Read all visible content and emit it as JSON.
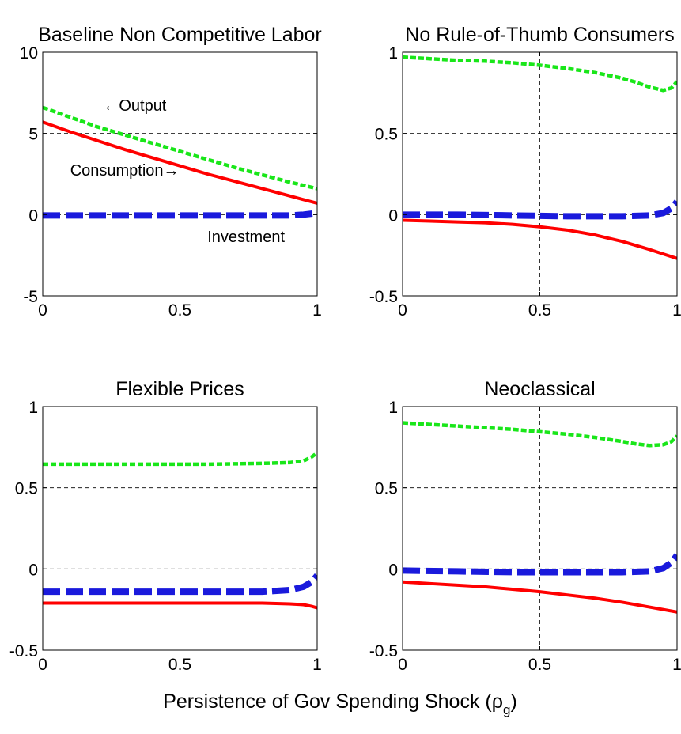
{
  "figure": {
    "xlabel_main": "Persistence of Gov Spending Shock (",
    "xlabel_rho": "ρ",
    "xlabel_sub": "g",
    "xlabel_close": ")"
  },
  "colors": {
    "output": "#19e619",
    "consumption": "#ff0000",
    "investment": "#1a1adc"
  },
  "chart_data": [
    {
      "type": "line",
      "title": "Baseline Non Competitive Labor",
      "xlim": [
        0,
        1
      ],
      "ylim": [
        -5,
        10
      ],
      "xticks": [
        0,
        0.5,
        1
      ],
      "xtick_labels": [
        "0",
        "0.5",
        "1"
      ],
      "yticks": [
        -5,
        0,
        5,
        10
      ],
      "ytick_labels": [
        "-5",
        "0",
        "5",
        "10"
      ],
      "grid": true,
      "annotations": [
        {
          "text": "←Output",
          "x": 0.22,
          "y": 6.4
        },
        {
          "text": "Consumption→",
          "x": 0.1,
          "y": 2.4
        },
        {
          "text": "Investment",
          "x": 0.6,
          "y": -1.7
        }
      ],
      "series": [
        {
          "name": "Output",
          "x": [
            0,
            0.1,
            0.2,
            0.3,
            0.4,
            0.5,
            0.6,
            0.7,
            0.8,
            0.9,
            1.0
          ],
          "y": [
            6.6,
            6.0,
            5.4,
            4.9,
            4.4,
            3.9,
            3.4,
            2.9,
            2.45,
            2.0,
            1.6
          ]
        },
        {
          "name": "Consumption",
          "x": [
            0,
            0.1,
            0.2,
            0.3,
            0.4,
            0.5,
            0.6,
            0.7,
            0.8,
            0.9,
            1.0
          ],
          "y": [
            5.7,
            5.1,
            4.55,
            4.0,
            3.5,
            3.0,
            2.5,
            2.05,
            1.6,
            1.15,
            0.7
          ]
        },
        {
          "name": "Investment",
          "x": [
            0,
            0.1,
            0.2,
            0.3,
            0.4,
            0.5,
            0.6,
            0.7,
            0.8,
            0.9,
            0.95,
            1.0
          ],
          "y": [
            -0.05,
            -0.05,
            -0.05,
            -0.05,
            -0.05,
            -0.05,
            -0.05,
            -0.05,
            -0.05,
            -0.05,
            0.0,
            0.1
          ]
        }
      ]
    },
    {
      "type": "line",
      "title": "No Rule-of-Thumb Consumers",
      "xlim": [
        0,
        1
      ],
      "ylim": [
        -0.5,
        1
      ],
      "xticks": [
        0,
        0.5,
        1
      ],
      "xtick_labels": [
        "0",
        "0.5",
        "1"
      ],
      "yticks": [
        -0.5,
        0,
        0.5,
        1
      ],
      "ytick_labels": [
        "-0.5",
        "0",
        "0.5",
        "1"
      ],
      "grid": true,
      "series": [
        {
          "name": "Output",
          "x": [
            0,
            0.1,
            0.2,
            0.3,
            0.4,
            0.5,
            0.6,
            0.7,
            0.8,
            0.85,
            0.9,
            0.95,
            0.98,
            1.0
          ],
          "y": [
            0.97,
            0.96,
            0.95,
            0.945,
            0.935,
            0.92,
            0.9,
            0.875,
            0.84,
            0.815,
            0.785,
            0.765,
            0.78,
            0.82
          ]
        },
        {
          "name": "Consumption",
          "x": [
            0,
            0.1,
            0.2,
            0.3,
            0.4,
            0.5,
            0.6,
            0.7,
            0.8,
            0.9,
            1.0
          ],
          "y": [
            -0.035,
            -0.04,
            -0.045,
            -0.05,
            -0.06,
            -0.075,
            -0.095,
            -0.125,
            -0.165,
            -0.215,
            -0.27
          ]
        },
        {
          "name": "Investment",
          "x": [
            0,
            0.2,
            0.4,
            0.6,
            0.8,
            0.9,
            0.95,
            0.98,
            1.0
          ],
          "y": [
            0.0,
            0.0,
            -0.005,
            -0.01,
            -0.01,
            -0.005,
            0.01,
            0.04,
            0.08
          ]
        }
      ]
    },
    {
      "type": "line",
      "title": "Flexible Prices",
      "xlim": [
        0,
        1
      ],
      "ylim": [
        -0.5,
        1
      ],
      "xticks": [
        0,
        0.5,
        1
      ],
      "xtick_labels": [
        "0",
        "0.5",
        "1"
      ],
      "yticks": [
        -0.5,
        0,
        0.5,
        1
      ],
      "ytick_labels": [
        "-0.5",
        "0",
        "0.5",
        "1"
      ],
      "grid": true,
      "series": [
        {
          "name": "Output",
          "x": [
            0,
            0.2,
            0.4,
            0.6,
            0.8,
            0.9,
            0.95,
            0.98,
            1.0
          ],
          "y": [
            0.645,
            0.645,
            0.645,
            0.645,
            0.65,
            0.655,
            0.665,
            0.69,
            0.715
          ]
        },
        {
          "name": "Consumption",
          "x": [
            0,
            0.2,
            0.4,
            0.6,
            0.8,
            0.9,
            0.95,
            0.98,
            1.0
          ],
          "y": [
            -0.21,
            -0.21,
            -0.21,
            -0.21,
            -0.21,
            -0.215,
            -0.22,
            -0.23,
            -0.24
          ]
        },
        {
          "name": "Investment",
          "x": [
            0,
            0.2,
            0.4,
            0.6,
            0.8,
            0.9,
            0.95,
            0.98,
            1.0
          ],
          "y": [
            -0.14,
            -0.14,
            -0.14,
            -0.14,
            -0.14,
            -0.13,
            -0.11,
            -0.08,
            -0.04
          ]
        }
      ]
    },
    {
      "type": "line",
      "title": "Neoclassical",
      "xlim": [
        0,
        1
      ],
      "ylim": [
        -0.5,
        1
      ],
      "xticks": [
        0,
        0.5,
        1
      ],
      "xtick_labels": [
        "0",
        "0.5",
        "1"
      ],
      "yticks": [
        -0.5,
        0,
        0.5,
        1
      ],
      "ytick_labels": [
        "-0.5",
        "0",
        "0.5",
        "1"
      ],
      "grid": true,
      "series": [
        {
          "name": "Output",
          "x": [
            0,
            0.1,
            0.2,
            0.3,
            0.4,
            0.5,
            0.6,
            0.7,
            0.8,
            0.85,
            0.9,
            0.95,
            0.98,
            1.0
          ],
          "y": [
            0.9,
            0.89,
            0.88,
            0.87,
            0.86,
            0.845,
            0.83,
            0.81,
            0.785,
            0.77,
            0.76,
            0.765,
            0.785,
            0.82
          ]
        },
        {
          "name": "Consumption",
          "x": [
            0,
            0.1,
            0.2,
            0.3,
            0.4,
            0.5,
            0.6,
            0.7,
            0.8,
            0.9,
            1.0
          ],
          "y": [
            -0.08,
            -0.09,
            -0.1,
            -0.11,
            -0.125,
            -0.14,
            -0.16,
            -0.18,
            -0.205,
            -0.235,
            -0.265
          ]
        },
        {
          "name": "Investment",
          "x": [
            0,
            0.2,
            0.4,
            0.6,
            0.8,
            0.9,
            0.95,
            0.98,
            1.0
          ],
          "y": [
            -0.01,
            -0.015,
            -0.02,
            -0.02,
            -0.02,
            -0.015,
            0.005,
            0.04,
            0.085
          ]
        }
      ]
    }
  ]
}
